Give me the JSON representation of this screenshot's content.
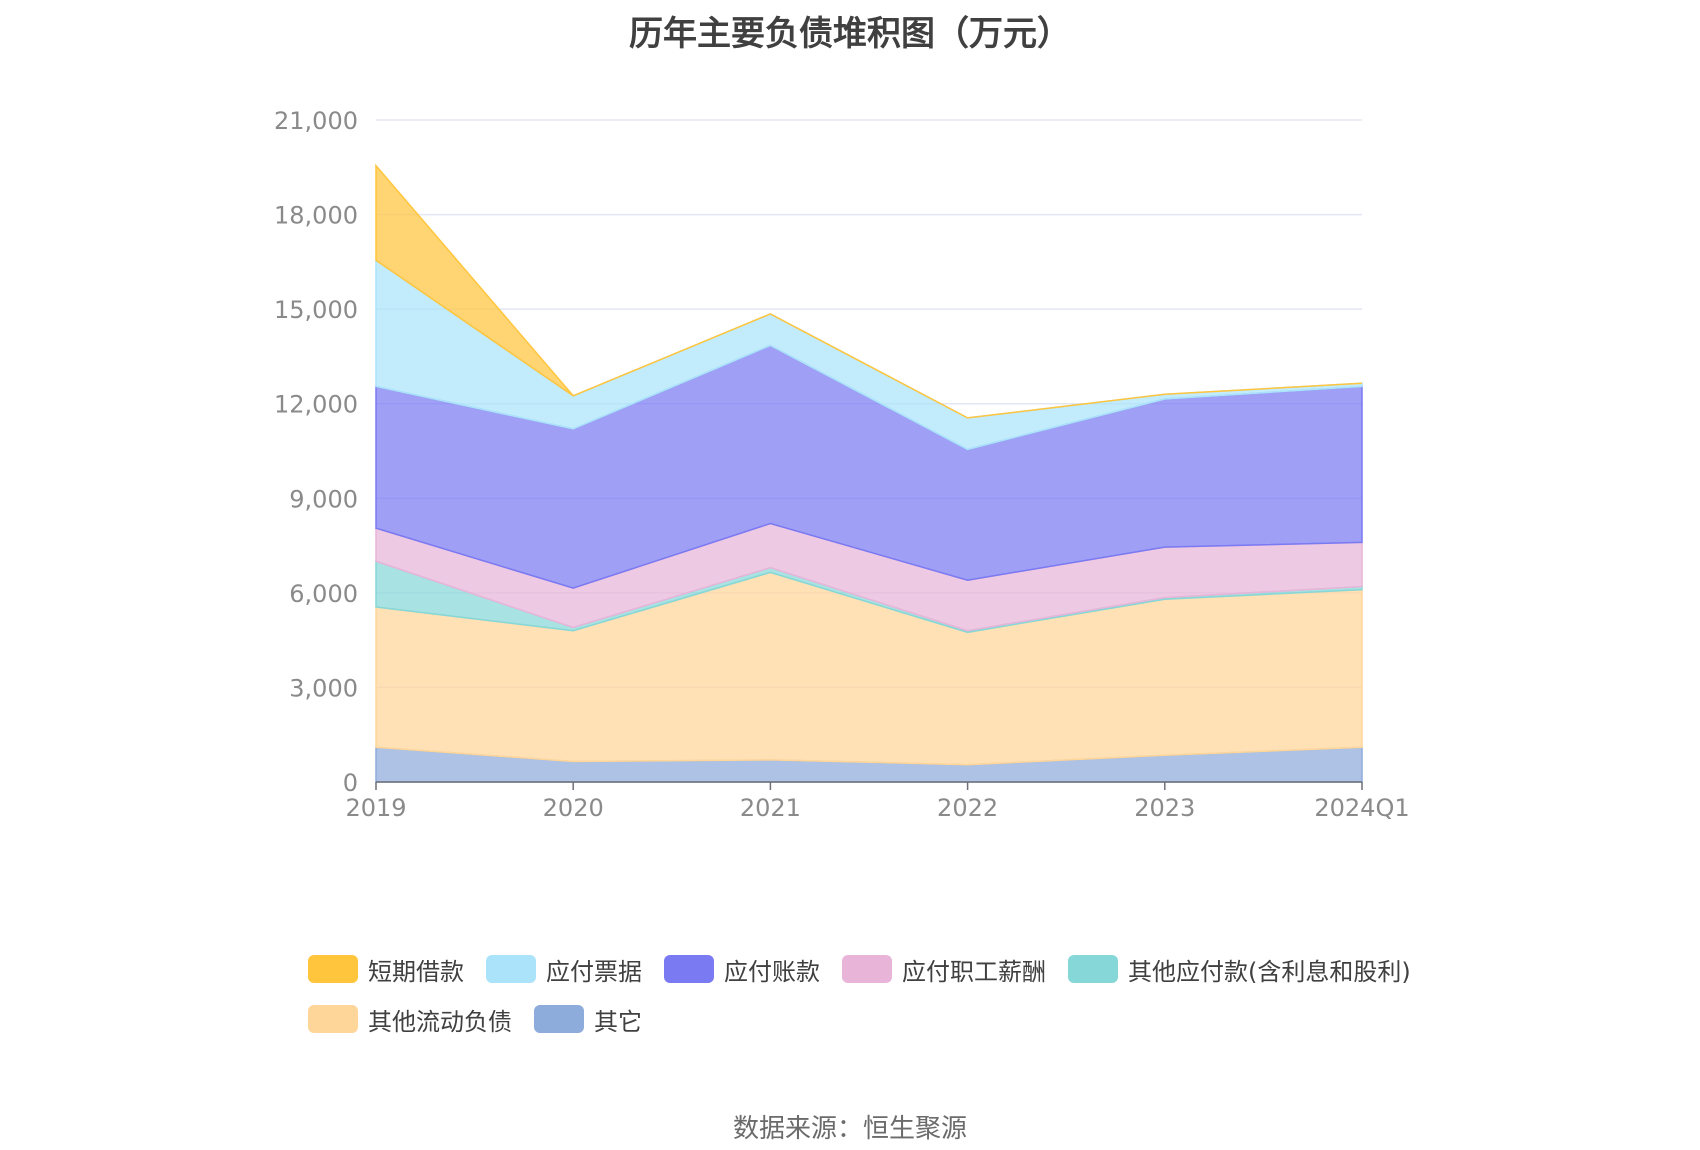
{
  "chart_data": {
    "type": "area",
    "title": "历年主要负债堆积图（万元）",
    "source": "数据来源：恒生聚源",
    "x": [
      "2019",
      "2020",
      "2021",
      "2022",
      "2023",
      "2024Q1"
    ],
    "ylim": [
      0,
      21000
    ],
    "yticks": [
      "0",
      "3,000",
      "6,000",
      "9,000",
      "12,000",
      "15,000",
      "18,000",
      "21,000"
    ],
    "ytick_values": [
      0,
      3000,
      6000,
      9000,
      12000,
      15000,
      18000,
      21000
    ],
    "grid": true,
    "legend_position": "bottom",
    "stacked": true,
    "series": [
      {
        "name": "其它",
        "color": "#8dabdb",
        "values": [
          1100,
          650,
          700,
          550,
          850,
          1100
        ]
      },
      {
        "name": "其他流动负债",
        "color": "#ffd699",
        "values": [
          4450,
          4150,
          5950,
          4200,
          4950,
          5000
        ]
      },
      {
        "name": "其他应付款(含利息和股利)",
        "color": "#86d7d8",
        "values": [
          1450,
          100,
          150,
          50,
          50,
          100
        ]
      },
      {
        "name": "应付职工薪酬",
        "color": "#e8b4d8",
        "values": [
          1050,
          1250,
          1400,
          1600,
          1600,
          1400
        ]
      },
      {
        "name": "应付账款",
        "color": "#7a7af2",
        "values": [
          4500,
          5050,
          5650,
          4150,
          4700,
          4950
        ]
      },
      {
        "name": "应付票据",
        "color": "#aae3fa",
        "values": [
          4000,
          1050,
          1000,
          1000,
          150,
          100
        ]
      },
      {
        "name": "短期借款",
        "color": "#ffc53d",
        "values": [
          3000,
          0,
          0,
          0,
          0,
          0
        ]
      }
    ],
    "legend_order": [
      "短期借款",
      "应付票据",
      "应付账款",
      "应付职工薪酬",
      "其他应付款(含利息和股利)",
      "其他流动负债",
      "其它"
    ]
  }
}
